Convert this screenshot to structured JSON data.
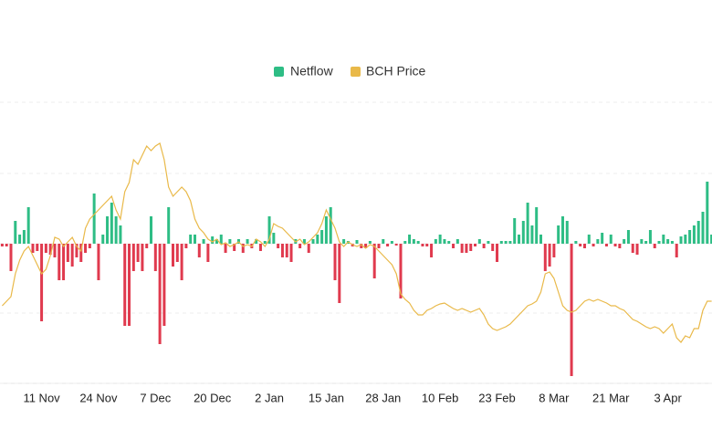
{
  "chart_data": {
    "type": "bar",
    "categories": [
      null,
      null,
      null,
      null,
      null,
      null,
      null,
      null,
      null,
      "11 Nov",
      null,
      null,
      null,
      null,
      null,
      null,
      null,
      null,
      null,
      null,
      null,
      null,
      "24 Nov",
      null,
      null,
      null,
      null,
      null,
      null,
      null,
      null,
      null,
      null,
      null,
      null,
      "7 Dec",
      null,
      null,
      null,
      null,
      null,
      null,
      null,
      null,
      null,
      null,
      null,
      null,
      "20 Dec",
      null,
      null,
      null,
      null,
      null,
      null,
      null,
      null,
      null,
      null,
      null,
      null,
      "2 Jan",
      null,
      null,
      null,
      null,
      null,
      null,
      null,
      null,
      null,
      null,
      null,
      null,
      "15 Jan",
      null,
      null,
      null,
      null,
      null,
      null,
      null,
      null,
      null,
      null,
      null,
      null,
      "28 Jan",
      null,
      null,
      null,
      null,
      null,
      null,
      null,
      null,
      null,
      null,
      null,
      null,
      "10 Feb",
      null,
      null,
      null,
      null,
      null,
      null,
      null,
      null,
      null,
      null,
      null,
      null,
      "23 Feb",
      null,
      null,
      null,
      null,
      null,
      null,
      null,
      null,
      null,
      null,
      null,
      null,
      "8 Mar",
      null,
      null,
      null,
      null,
      null,
      null,
      null,
      null,
      null,
      null,
      null,
      null,
      "21 Mar",
      null,
      null,
      null,
      null,
      null,
      null,
      null,
      null,
      null,
      null,
      null,
      null,
      "3 Apr",
      null,
      null,
      null,
      null,
      null,
      null,
      null,
      null,
      null,
      null
    ],
    "series": [
      {
        "name": "Netflow",
        "type": "bar",
        "color": "#2ebd85",
        "negative_color": "#e03a4e",
        "values": [
          -3,
          -3,
          -30,
          25,
          10,
          15,
          40,
          -10,
          -8,
          -85,
          -10,
          -12,
          -15,
          -40,
          -40,
          -20,
          -25,
          -15,
          -20,
          -10,
          -5,
          55,
          -40,
          10,
          30,
          45,
          30,
          20,
          -90,
          -90,
          -30,
          -20,
          -30,
          -5,
          30,
          -30,
          -110,
          -90,
          40,
          -25,
          -20,
          -40,
          -5,
          10,
          10,
          -15,
          5,
          -20,
          8,
          5,
          10,
          -10,
          5,
          -8,
          5,
          -10,
          5,
          -5,
          5,
          -8,
          3,
          30,
          12,
          -5,
          -15,
          -15,
          -20,
          5,
          -5,
          5,
          -10,
          5,
          10,
          15,
          30,
          40,
          -40,
          -65,
          5,
          3,
          -3,
          4,
          -5,
          -5,
          3,
          -38,
          -5,
          5,
          -3,
          3,
          -2,
          -60,
          3,
          10,
          5,
          3,
          -3,
          -3,
          -15,
          5,
          10,
          5,
          3,
          -5,
          5,
          -10,
          -10,
          -8,
          -3,
          5,
          -5,
          3,
          -8,
          -20,
          3,
          3,
          3,
          28,
          10,
          25,
          45,
          20,
          40,
          10,
          -30,
          -25,
          -15,
          20,
          30,
          25,
          -145,
          3,
          -3,
          -5,
          10,
          -3,
          5,
          12,
          -3,
          10,
          -3,
          -5,
          5,
          15,
          -10,
          -12,
          5,
          3,
          15,
          -5,
          3,
          10,
          5,
          3,
          -15,
          8,
          10,
          15,
          20,
          25,
          35,
          68,
          10
        ]
      },
      {
        "name": "BCH Price",
        "type": "line",
        "axis": "y2",
        "color": "#e9b949",
        "values": [
          85,
          90,
          95,
          120,
          135,
          145,
          150,
          140,
          130,
          120,
          125,
          140,
          160,
          158,
          150,
          155,
          160,
          150,
          145,
          170,
          180,
          185,
          190,
          195,
          200,
          205,
          190,
          180,
          210,
          220,
          245,
          240,
          250,
          260,
          255,
          260,
          263,
          245,
          215,
          205,
          210,
          215,
          210,
          200,
          180,
          170,
          165,
          158,
          155,
          158,
          152,
          154,
          150,
          152,
          155,
          150,
          152,
          150,
          158,
          155,
          150,
          158,
          175,
          172,
          170,
          165,
          160,
          155,
          158,
          152,
          155,
          160,
          165,
          175,
          190,
          180,
          170,
          155,
          150,
          155,
          152,
          150,
          152,
          148,
          152,
          150,
          145,
          140,
          135,
          130,
          120,
          98,
          92,
          88,
          80,
          75,
          75,
          80,
          82,
          85,
          87,
          88,
          85,
          82,
          80,
          82,
          80,
          78,
          80,
          82,
          75,
          65,
          60,
          58,
          60,
          62,
          65,
          70,
          75,
          80,
          85,
          87,
          90,
          100,
          120,
          122,
          115,
          100,
          85,
          80,
          78,
          80,
          85,
          90,
          92,
          90,
          92,
          90,
          88,
          85,
          85,
          82,
          80,
          75,
          70,
          68,
          65,
          62,
          60,
          62,
          60,
          55,
          60,
          65,
          50,
          45,
          52,
          50,
          60,
          60,
          80,
          90,
          90
        ]
      }
    ],
    "ylim": [
      -153,
      167
    ],
    "yticks": [
      -153,
      -76,
      0,
      77,
      155
    ],
    "y2lim": [
      0,
      320
    ],
    "grid": true,
    "legend": "top"
  }
}
